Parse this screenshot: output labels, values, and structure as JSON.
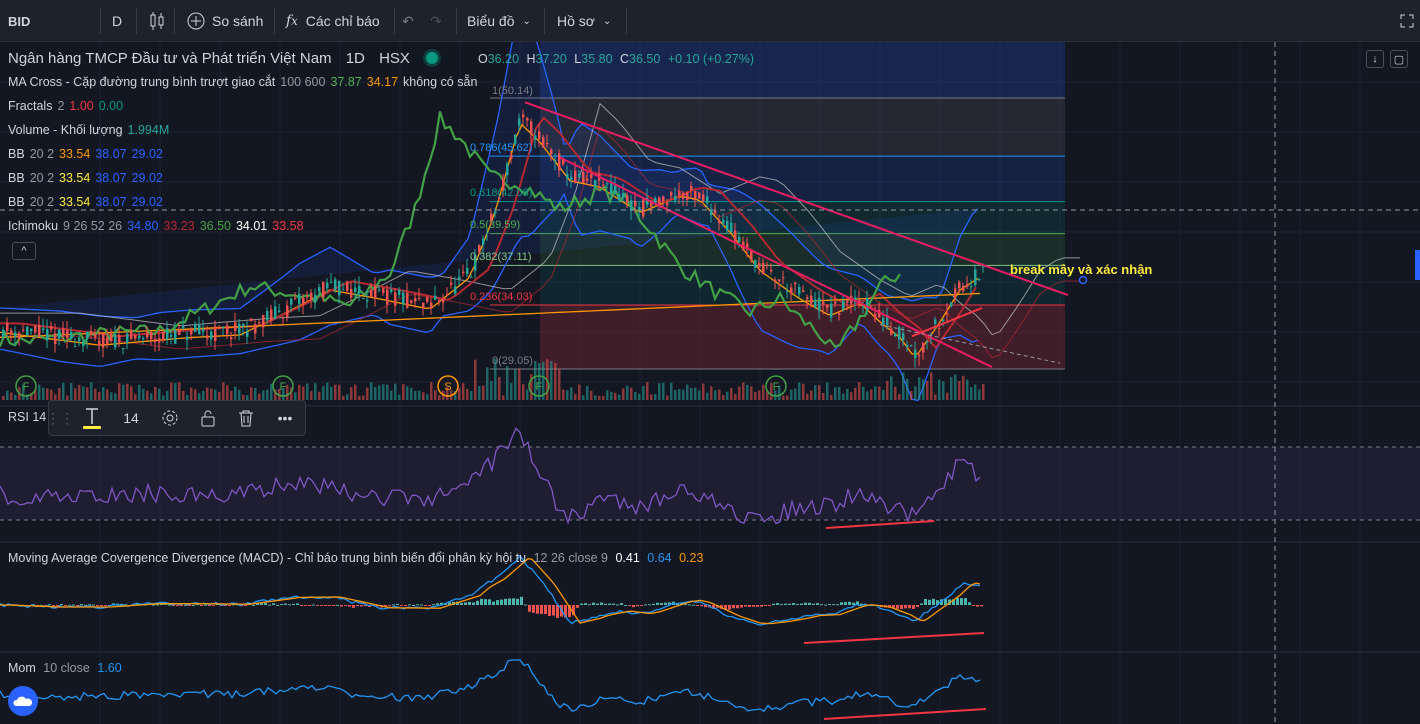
{
  "toolbar": {
    "symbol": "BID",
    "interval": "D",
    "compare_label": "So sánh",
    "indicators_label": "Các chỉ báo",
    "chart_menu_label": "Biểu đồ",
    "profile_menu_label": "Hồ sơ"
  },
  "chart": {
    "title": "Ngân hàng TMCP Đầu tư và Phát triển Việt Nam",
    "timeframe": "1D",
    "exchange": "HSX",
    "ohlc": {
      "o_label": "O",
      "o": "36.20",
      "h_label": "H",
      "h": "37.20",
      "l_label": "L",
      "l": "35.80",
      "c_label": "C",
      "c": "36.50",
      "change": "+0.10 (+0.27%)"
    },
    "annotation": "break mây và xác nhận"
  },
  "indicators": [
    {
      "name": "MA Cross - Cặp đường trung bình trượt giao cắt",
      "params": "100 600",
      "v1": "37.87",
      "v2": "34.17",
      "v3": "không có sẵn",
      "c1": "#4caf50",
      "c2": "#ff9800"
    },
    {
      "name": "Fractals",
      "params": "2",
      "v1": "1.00",
      "v2": "0.00",
      "c1": "#f23645",
      "c2": "#089981"
    },
    {
      "name": "Volume - Khối lượng",
      "params": "",
      "v1": "1.994M",
      "c1": "#26a69a"
    },
    {
      "name": "BB",
      "params": "20 2",
      "v1": "33.54",
      "v2": "38.07",
      "v3": "29.02",
      "c1": "#ff9800",
      "c2": "#2962ff",
      "c3": "#2962ff"
    },
    {
      "name": "BB",
      "params": "20 2",
      "v1": "33.54",
      "v2": "38.07",
      "v3": "29.02",
      "c1": "#ffeb3b",
      "c2": "#2962ff",
      "c3": "#2962ff"
    },
    {
      "name": "BB",
      "params": "20 2",
      "v1": "33.54",
      "v2": "38.07",
      "v3": "29.02",
      "c1": "#ffeb3b",
      "c2": "#2962ff",
      "c3": "#2962ff"
    },
    {
      "name": "Ichimoku",
      "params": "9 26 52 26",
      "v1": "34.80",
      "v2": "33.23",
      "v3": "36.50",
      "v4": "34.01",
      "v5": "33.58",
      "c1": "#2962ff",
      "c2": "#b22833",
      "c3": "#43a047",
      "c4": "#ffffff",
      "c5": "#f23645"
    }
  ],
  "fib_levels": [
    {
      "label": "1(50.14)"
    },
    {
      "label": "0.786(45.62)"
    },
    {
      "label": "0.618(42.08)"
    },
    {
      "label": "0.5(39.59)"
    },
    {
      "label": "0.382(37.11)"
    },
    {
      "label": "0.236(34.03)"
    },
    {
      "label": "0(29.05)"
    }
  ],
  "fractal_markers": [
    "F",
    "F",
    "S",
    "F",
    "F"
  ],
  "rsi": {
    "name": "RSI",
    "params": "14"
  },
  "macd": {
    "name": "Moving Average Covergence Divergence (MACD) - Chỉ báo trung bình biến đổi phân kỳ hội tụ",
    "params": "12 26 close 9",
    "v1": "0.41",
    "v2": "0.64",
    "v3": "0.23"
  },
  "mom": {
    "name": "Mom",
    "params": "10 close",
    "v1": "1.60"
  },
  "floating_toolbar": {
    "size": "14"
  },
  "colors": {
    "up": "#26a69a",
    "down": "#ef5350",
    "bb": "#2962ff",
    "rsi": "#7e57c2",
    "macd": "#2962ff",
    "signal": "#ff9800",
    "trendline": "#e91e63",
    "annotation": "#ffeb3b"
  },
  "chart_data": {
    "type": "candlestick",
    "fib_retracement": {
      "levels": [
        1,
        0.786,
        0.618,
        0.5,
        0.382,
        0.236,
        0
      ],
      "prices": [
        50.14,
        45.62,
        42.08,
        39.59,
        37.11,
        34.03,
        29.05
      ]
    },
    "last": {
      "open": 36.2,
      "high": 37.2,
      "low": 35.8,
      "close": 36.5
    }
  }
}
